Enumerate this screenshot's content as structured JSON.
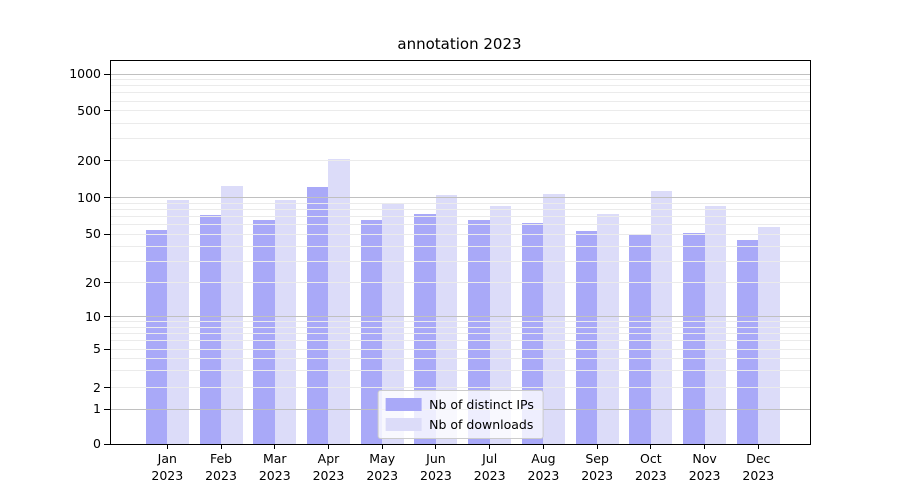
{
  "figure": {
    "title": "annotation 2023"
  },
  "chart_data": {
    "type": "bar",
    "title": "annotation 2023",
    "categories": [
      "Jan 2023",
      "Feb 2023",
      "Mar 2023",
      "Apr 2023",
      "May 2023",
      "Jun 2023",
      "Jul 2023",
      "Aug 2023",
      "Sep 2023",
      "Oct 2023",
      "Nov 2023",
      "Dec 2023"
    ],
    "series": [
      {
        "name": "Nb of distinct IPs",
        "color": "#a9a9f8",
        "values": [
          54,
          72,
          66,
          123,
          65,
          73,
          66,
          62,
          53,
          49,
          51,
          45
        ]
      },
      {
        "name": "Nb of downloads",
        "color": "#dcdcf9",
        "values": [
          96,
          125,
          95,
          208,
          88,
          106,
          86,
          108,
          74,
          113,
          85,
          57
        ]
      }
    ],
    "xlabel": "",
    "ylabel": "",
    "yscale": "symlog",
    "yticks": [
      0,
      1,
      2,
      5,
      10,
      20,
      50,
      100,
      200,
      500,
      1000
    ],
    "ylim": [
      0,
      1300
    ],
    "grid": true,
    "legend_position": "lower center"
  }
}
